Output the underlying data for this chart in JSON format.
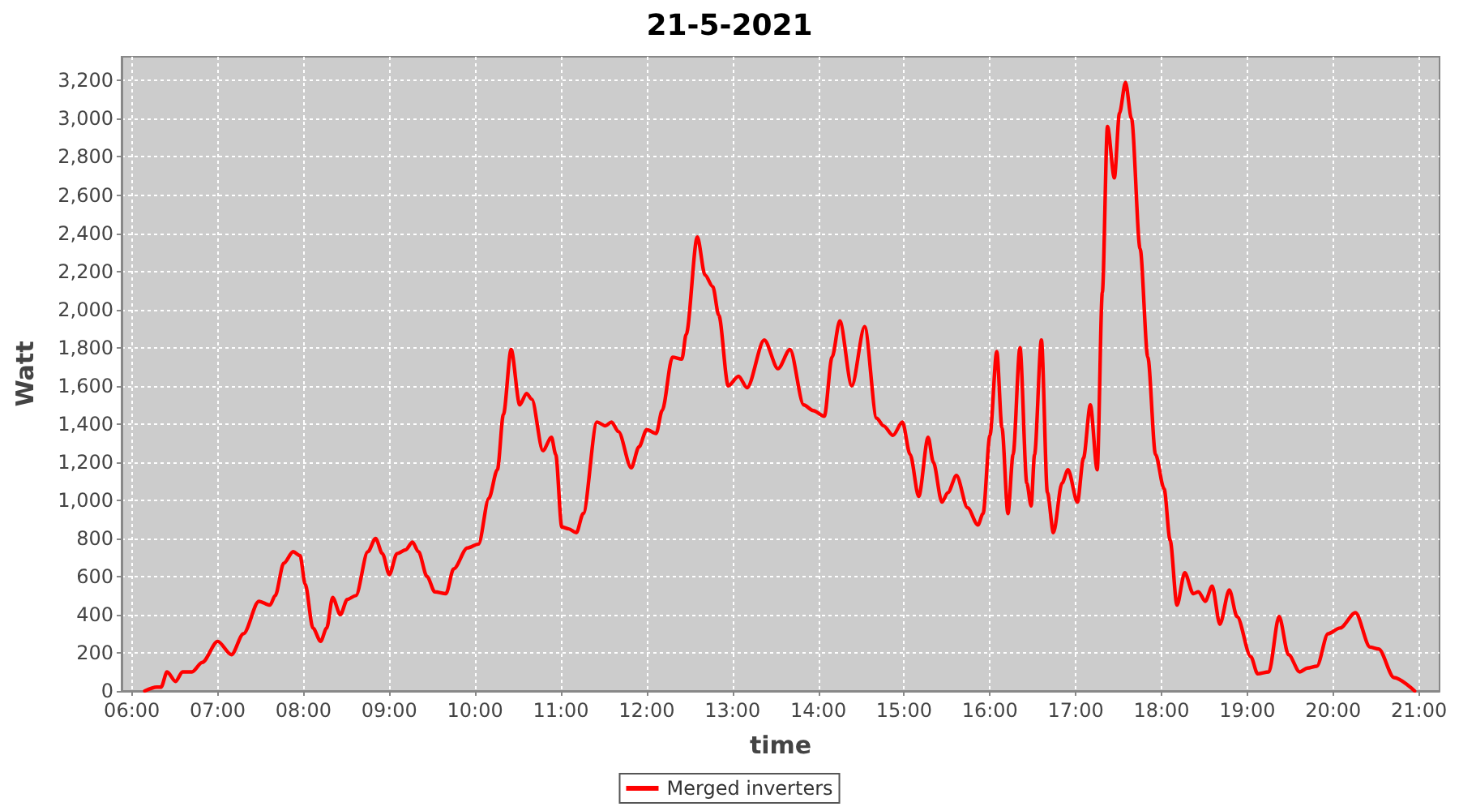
{
  "chart_data": {
    "type": "line",
    "title": "21-5-2021",
    "xlabel": "time",
    "ylabel": "Watt",
    "x": [
      6.15,
      6.29,
      6.34,
      6.41,
      6.51,
      6.59,
      6.7,
      6.82,
      7.0,
      7.16,
      7.3,
      7.48,
      7.61,
      7.67,
      7.77,
      7.88,
      7.96,
      8.02,
      8.11,
      8.2,
      8.27,
      8.34,
      8.43,
      8.51,
      8.61,
      8.75,
      8.84,
      8.92,
      9.0,
      9.09,
      9.19,
      9.27,
      9.34,
      9.44,
      9.53,
      9.66,
      9.75,
      9.91,
      10.04,
      10.16,
      10.26,
      10.33,
      10.42,
      10.52,
      10.6,
      10.66,
      10.79,
      10.89,
      10.94,
      11.01,
      11.09,
      11.18,
      11.26,
      11.42,
      11.52,
      11.59,
      11.67,
      11.82,
      11.91,
      12.0,
      12.11,
      12.18,
      12.3,
      12.41,
      12.46,
      12.59,
      12.68,
      12.77,
      12.84,
      12.95,
      13.07,
      13.17,
      13.37,
      13.53,
      13.67,
      13.83,
      13.94,
      14.07,
      14.16,
      14.25,
      14.39,
      14.54,
      14.68,
      14.76,
      14.87,
      14.98,
      15.07,
      15.17,
      15.28,
      15.34,
      15.44,
      15.51,
      15.61,
      15.74,
      15.86,
      15.92,
      16.0,
      16.08,
      16.14,
      16.21,
      16.27,
      16.35,
      16.43,
      16.48,
      16.52,
      16.6,
      16.67,
      16.74,
      16.84,
      16.91,
      17.02,
      17.09,
      17.17,
      17.25,
      17.31,
      17.37,
      17.45,
      17.51,
      17.58,
      17.65,
      17.75,
      17.84,
      17.93,
      18.03,
      18.1,
      18.18,
      18.27,
      18.37,
      18.43,
      18.51,
      18.59,
      18.68,
      18.79,
      18.88,
      19.04,
      19.12,
      19.25,
      19.37,
      19.48,
      19.61,
      19.7,
      19.81,
      19.94,
      20.08,
      20.26,
      20.43,
      20.53,
      20.71,
      20.95
    ],
    "series": [
      {
        "name": "Merged inverters",
        "color": "#ff0000",
        "values": [
          0,
          20,
          20,
          100,
          50,
          100,
          100,
          150,
          260,
          190,
          300,
          470,
          450,
          500,
          670,
          730,
          710,
          560,
          330,
          260,
          330,
          490,
          400,
          480,
          500,
          730,
          800,
          720,
          610,
          720,
          740,
          780,
          730,
          600,
          520,
          510,
          640,
          750,
          770,
          1010,
          1160,
          1450,
          1790,
          1500,
          1560,
          1530,
          1260,
          1330,
          1240,
          860,
          850,
          830,
          930,
          1410,
          1390,
          1410,
          1360,
          1170,
          1280,
          1370,
          1350,
          1470,
          1750,
          1740,
          1870,
          2380,
          2180,
          2120,
          1970,
          1600,
          1650,
          1590,
          1840,
          1690,
          1790,
          1500,
          1470,
          1440,
          1750,
          1940,
          1600,
          1910,
          1430,
          1390,
          1340,
          1410,
          1240,
          1020,
          1330,
          1200,
          990,
          1040,
          1130,
          960,
          870,
          930,
          1340,
          1780,
          1380,
          930,
          1240,
          1800,
          1090,
          970,
          1240,
          1840,
          1040,
          830,
          1090,
          1160,
          990,
          1220,
          1500,
          1160,
          2090,
          2960,
          2690,
          3030,
          3190,
          3000,
          2320,
          1750,
          1240,
          1060,
          790,
          450,
          620,
          510,
          520,
          470,
          550,
          350,
          530,
          390,
          180,
          90,
          100,
          390,
          190,
          100,
          120,
          130,
          300,
          330,
          410,
          230,
          220,
          70,
          0
        ]
      }
    ],
    "xlim": [
      5.88,
      21.24
    ],
    "xticks": [
      {
        "value": 6,
        "label": "06:00"
      },
      {
        "value": 7,
        "label": "07:00"
      },
      {
        "value": 8,
        "label": "08:00"
      },
      {
        "value": 9,
        "label": "09:00"
      },
      {
        "value": 10,
        "label": "10:00"
      },
      {
        "value": 11,
        "label": "11:00"
      },
      {
        "value": 12,
        "label": "12:00"
      },
      {
        "value": 13,
        "label": "13:00"
      },
      {
        "value": 14,
        "label": "14:00"
      },
      {
        "value": 15,
        "label": "15:00"
      },
      {
        "value": 16,
        "label": "16:00"
      },
      {
        "value": 17,
        "label": "17:00"
      },
      {
        "value": 18,
        "label": "18:00"
      },
      {
        "value": 19,
        "label": "19:00"
      },
      {
        "value": 20,
        "label": "20:00"
      },
      {
        "value": 21,
        "label": "21:00"
      }
    ],
    "ylim": [
      0,
      3325
    ],
    "yticks": [
      0,
      200,
      400,
      600,
      800,
      {
        "value": 1000,
        "label": "1,000"
      },
      {
        "value": 1200,
        "label": "1,200"
      },
      {
        "value": 1400,
        "label": "1,400"
      },
      {
        "value": 1600,
        "label": "1,600"
      },
      {
        "value": 1800,
        "label": "1,800"
      },
      {
        "value": 2000,
        "label": "2,000"
      },
      {
        "value": 2200,
        "label": "2,200"
      },
      {
        "value": 2400,
        "label": "2,400"
      },
      {
        "value": 2600,
        "label": "2,600"
      },
      {
        "value": 2800,
        "label": "2,800"
      },
      {
        "value": 3000,
        "label": "3,000"
      },
      {
        "value": 3200,
        "label": "3,200"
      }
    ],
    "grid": true,
    "legend": "bottom",
    "marker": "none",
    "line_style": "solid"
  }
}
